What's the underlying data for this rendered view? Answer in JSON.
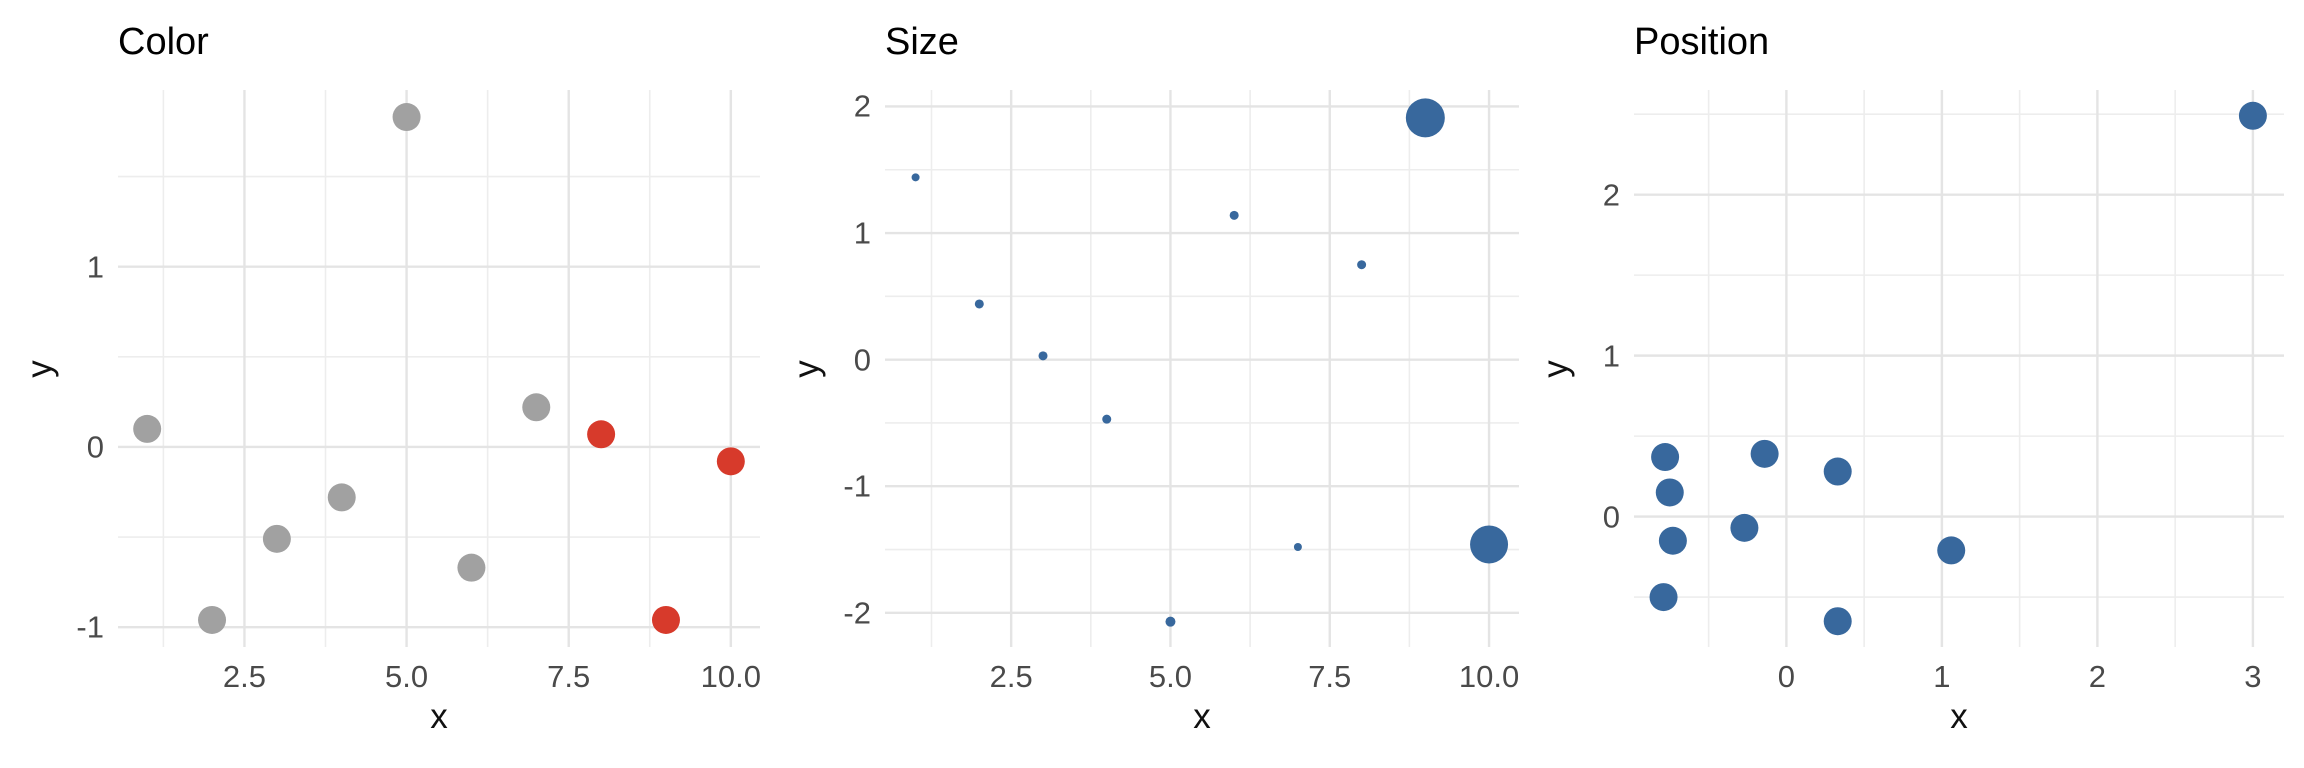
{
  "figure": {
    "background": "#ffffff"
  },
  "palette": {
    "grey": "#A1A1A1",
    "red": "#D73A2B",
    "blue": "#38689D",
    "grid_major": "#E4E4E4",
    "grid_minor": "#EDEDED",
    "tick_label_color": "#4A4A4A",
    "title_color": "#000000",
    "axis_title_color": "#111111"
  },
  "chart_data": [
    {
      "type": "scatter",
      "title": "Color",
      "xlabel": "x",
      "ylabel": "y",
      "x_domain": [
        0.55,
        10.45
      ],
      "y_domain": [
        -1.11,
        1.98
      ],
      "x_ticks": [
        {
          "v": 2.5,
          "label": "2.5"
        },
        {
          "v": 5.0,
          "label": "5.0"
        },
        {
          "v": 7.5,
          "label": "7.5"
        },
        {
          "v": 10.0,
          "label": "10.0"
        }
      ],
      "x_minor": [
        1.25,
        3.75,
        6.25,
        8.75
      ],
      "y_ticks": [
        {
          "v": -1,
          "label": "-1"
        },
        {
          "v": 0,
          "label": "0"
        },
        {
          "v": 1,
          "label": "1"
        }
      ],
      "y_minor": [
        -0.5,
        0.5,
        1.5
      ],
      "legend": "none",
      "grid": "on",
      "points": [
        {
          "x": 1,
          "y": 0.1,
          "color": "grey",
          "r": 14
        },
        {
          "x": 2,
          "y": -0.96,
          "color": "grey",
          "r": 14
        },
        {
          "x": 3,
          "y": -0.51,
          "color": "grey",
          "r": 14
        },
        {
          "x": 4,
          "y": -0.28,
          "color": "grey",
          "r": 14
        },
        {
          "x": 5,
          "y": 1.83,
          "color": "grey",
          "r": 14
        },
        {
          "x": 6,
          "y": -0.67,
          "color": "grey",
          "r": 14
        },
        {
          "x": 7,
          "y": 0.22,
          "color": "grey",
          "r": 14
        },
        {
          "x": 8,
          "y": 0.07,
          "color": "red",
          "r": 14
        },
        {
          "x": 9,
          "y": -0.96,
          "color": "red",
          "r": 14
        },
        {
          "x": 10,
          "y": -0.08,
          "color": "red",
          "r": 14
        }
      ]
    },
    {
      "type": "scatter",
      "title": "Size",
      "xlabel": "x",
      "ylabel": "y",
      "x_domain": [
        0.52,
        10.47
      ],
      "y_domain": [
        -2.27,
        2.13
      ],
      "x_ticks": [
        {
          "v": 2.5,
          "label": "2.5"
        },
        {
          "v": 5.0,
          "label": "5.0"
        },
        {
          "v": 7.5,
          "label": "7.5"
        },
        {
          "v": 10.0,
          "label": "10.0"
        }
      ],
      "x_minor": [
        1.25,
        3.75,
        6.25,
        8.75
      ],
      "y_ticks": [
        {
          "v": -2,
          "label": "-2"
        },
        {
          "v": -1,
          "label": "-1"
        },
        {
          "v": 0,
          "label": "0"
        },
        {
          "v": 1,
          "label": "1"
        },
        {
          "v": 2,
          "label": "2"
        }
      ],
      "y_minor": [
        -1.5,
        -0.5,
        0.5,
        1.5
      ],
      "legend": "none",
      "grid": "on",
      "points": [
        {
          "x": 1,
          "y": 1.44,
          "color": "blue",
          "r": 4
        },
        {
          "x": 2,
          "y": 0.44,
          "color": "blue",
          "r": 4.5
        },
        {
          "x": 3,
          "y": 0.03,
          "color": "blue",
          "r": 4.5
        },
        {
          "x": 4,
          "y": -0.47,
          "color": "blue",
          "r": 4.5
        },
        {
          "x": 5,
          "y": -2.07,
          "color": "blue",
          "r": 5
        },
        {
          "x": 6,
          "y": 1.14,
          "color": "blue",
          "r": 4.5
        },
        {
          "x": 7,
          "y": -1.48,
          "color": "blue",
          "r": 4
        },
        {
          "x": 8,
          "y": 0.75,
          "color": "blue",
          "r": 4.5
        },
        {
          "x": 9,
          "y": 1.91,
          "color": "blue",
          "r": 19.5
        },
        {
          "x": 10,
          "y": -1.46,
          "color": "blue",
          "r": 19
        }
      ]
    },
    {
      "type": "scatter",
      "title": "Position",
      "xlabel": "x",
      "ylabel": "y",
      "x_domain": [
        -0.98,
        3.2
      ],
      "y_domain": [
        -0.81,
        2.65
      ],
      "x_ticks": [
        {
          "v": 0,
          "label": "0"
        },
        {
          "v": 1,
          "label": "1"
        },
        {
          "v": 2,
          "label": "2"
        },
        {
          "v": 3,
          "label": "3"
        }
      ],
      "x_minor": [
        -0.5,
        0.5,
        1.5,
        2.5
      ],
      "y_ticks": [
        {
          "v": 0,
          "label": "0"
        },
        {
          "v": 1,
          "label": "1"
        },
        {
          "v": 2,
          "label": "2"
        }
      ],
      "y_minor": [
        -0.5,
        0.5,
        1.5,
        2.5
      ],
      "legend": "none",
      "grid": "on",
      "points": [
        {
          "x": -0.78,
          "y": 0.37,
          "color": "blue",
          "r": 14
        },
        {
          "x": -0.75,
          "y": 0.15,
          "color": "blue",
          "r": 14
        },
        {
          "x": -0.73,
          "y": -0.15,
          "color": "blue",
          "r": 14
        },
        {
          "x": -0.79,
          "y": -0.5,
          "color": "blue",
          "r": 14
        },
        {
          "x": -0.27,
          "y": -0.07,
          "color": "blue",
          "r": 14
        },
        {
          "x": -0.14,
          "y": 0.39,
          "color": "blue",
          "r": 14
        },
        {
          "x": 0.33,
          "y": 0.28,
          "color": "blue",
          "r": 14
        },
        {
          "x": 0.33,
          "y": -0.65,
          "color": "blue",
          "r": 14
        },
        {
          "x": 1.06,
          "y": -0.21,
          "color": "blue",
          "r": 14
        },
        {
          "x": 3.0,
          "y": 2.49,
          "color": "blue",
          "r": 14
        }
      ]
    }
  ]
}
